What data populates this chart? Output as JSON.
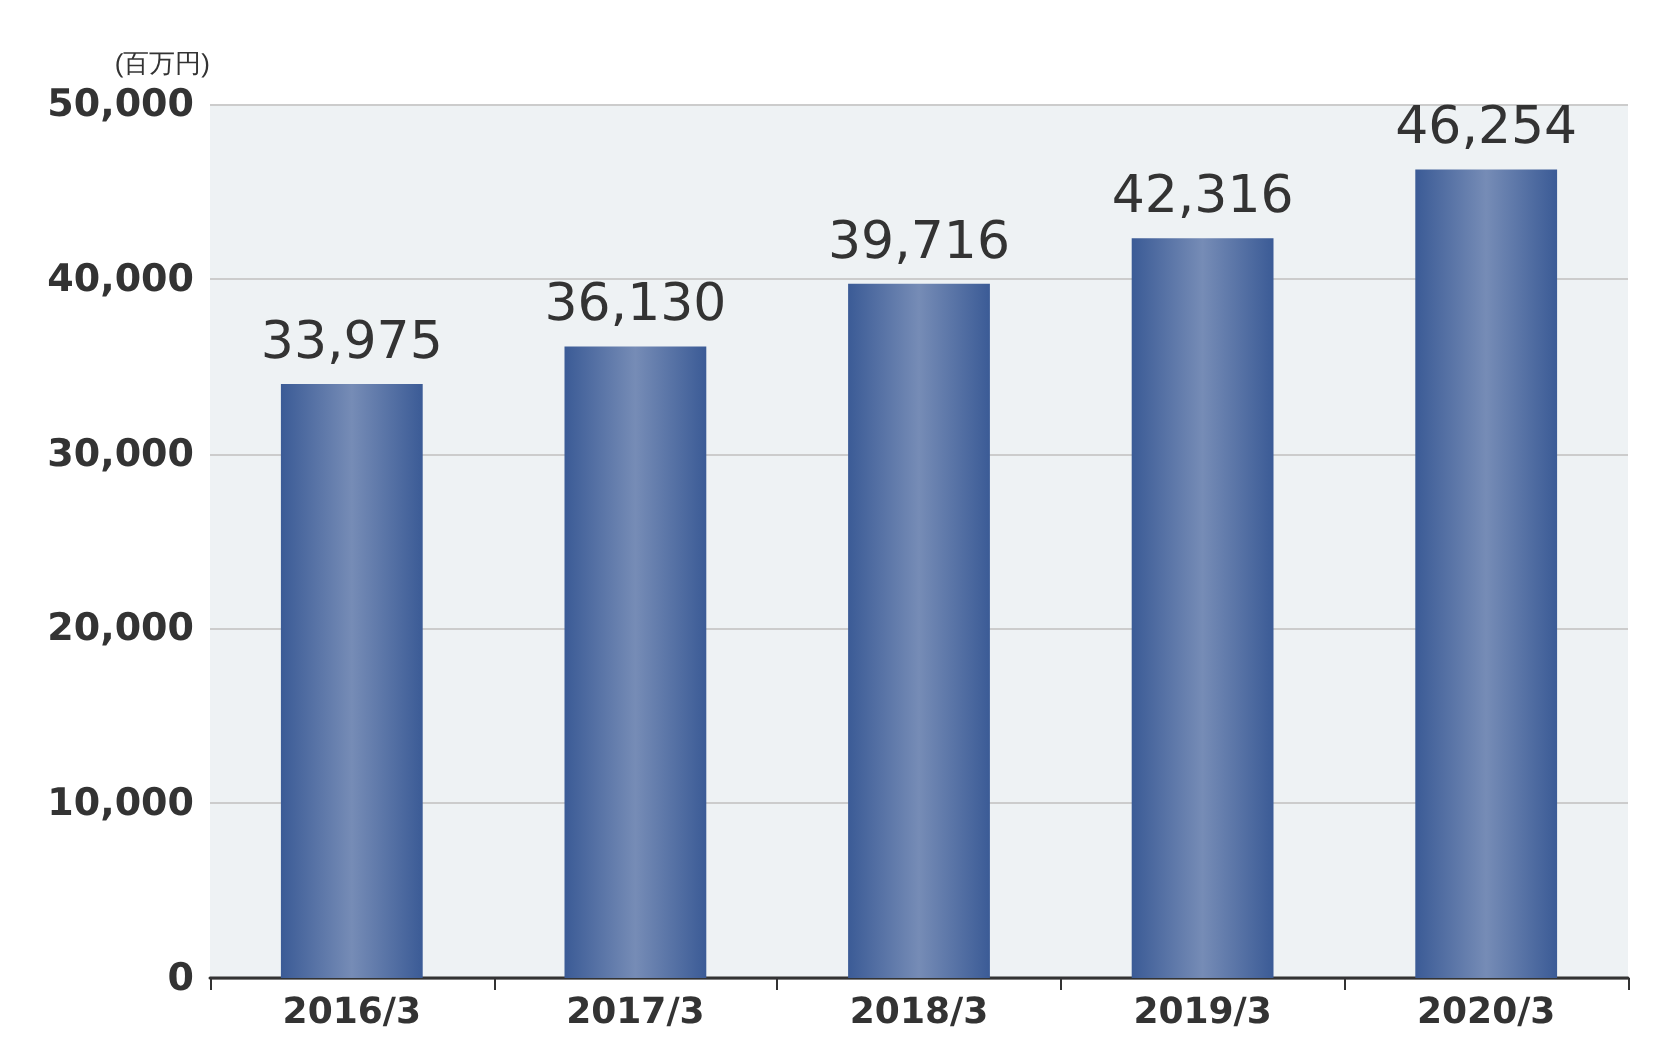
{
  "chart_data": {
    "type": "bar",
    "ylabel": "(百万円)",
    "categories": [
      "2016/3",
      "2017/3",
      "2018/3",
      "2019/3",
      "2020/3"
    ],
    "values": [
      33975,
      36130,
      39716,
      42316,
      46254
    ],
    "value_labels": [
      "33,975",
      "36,130",
      "39,716",
      "42,316",
      "46,254"
    ],
    "color": "#3b5b96",
    "ylim": [
      0,
      50000
    ],
    "yticks": [
      0,
      {
        "value": 10000,
        "label": "10,000"
      },
      {
        "value": 20000,
        "label": "20,000"
      },
      {
        "value": 30000,
        "label": "30,000"
      },
      {
        "value": 40000,
        "label": "40,000"
      },
      {
        "value": 50000,
        "label": "50,000"
      }
    ],
    "grid": "y"
  }
}
